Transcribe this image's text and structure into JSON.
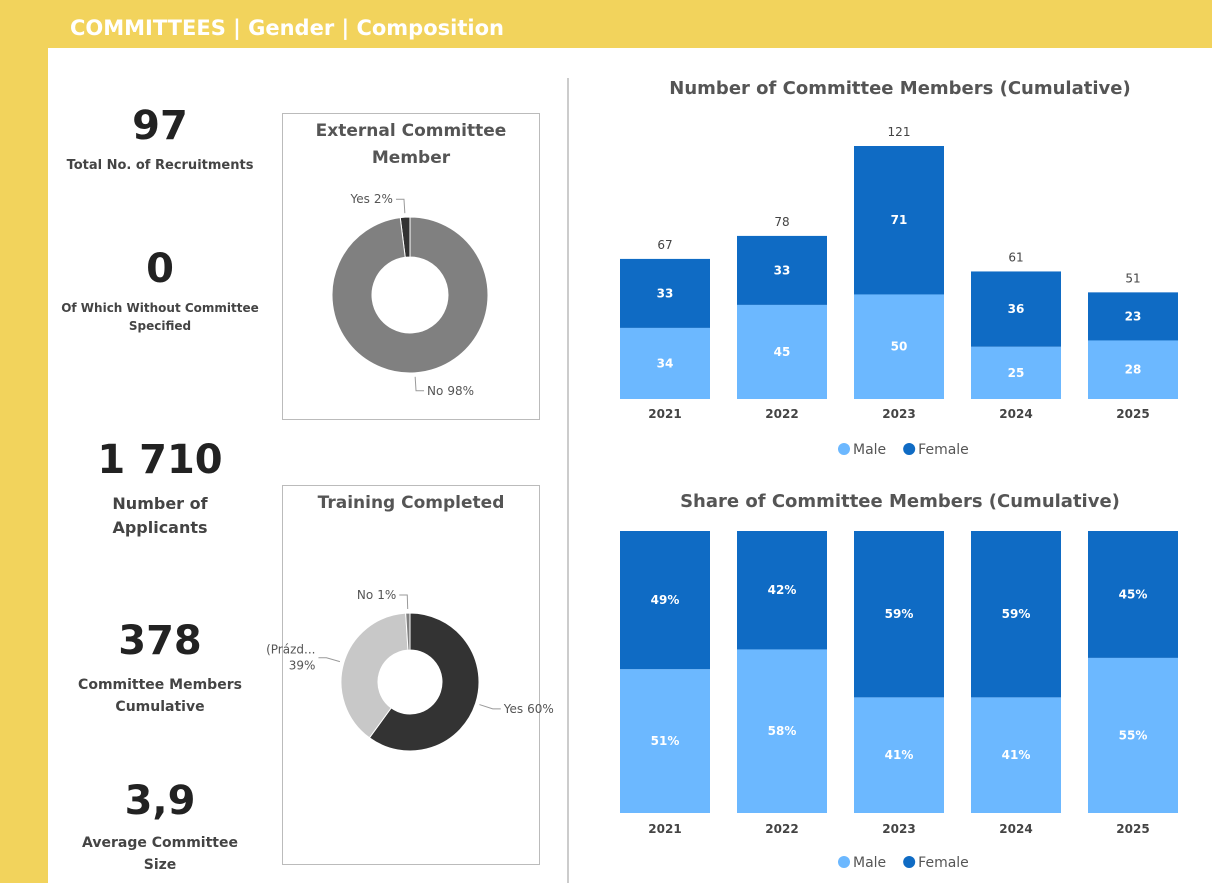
{
  "header": {
    "title": "COMMITTEES | Gender | Composition"
  },
  "kpis": [
    {
      "value": "97",
      "label": [
        "Total No. of Recruitments"
      ]
    },
    {
      "value": "0",
      "label": [
        "Of Which Without Committee",
        "Specified"
      ]
    },
    {
      "value": "1 710",
      "label": [
        "Number of",
        "Applicants"
      ]
    },
    {
      "value": "378",
      "label": [
        "Committee Members",
        "Cumulative"
      ]
    },
    {
      "value": "3,9",
      "label": [
        "Average Committee",
        "Size"
      ]
    }
  ],
  "chart_data": [
    {
      "type": "donut",
      "title": "External Committee Member",
      "categories": [
        "Yes",
        "No"
      ],
      "values": [
        2,
        98
      ],
      "value_labels": [
        "2%",
        "98%"
      ],
      "colors": [
        "#333333",
        "#808080"
      ],
      "direction": "counterclockwise"
    },
    {
      "type": "donut",
      "title": "Training Completed",
      "categories": [
        "Yes",
        "(Prázd...",
        "No"
      ],
      "values": [
        60,
        39,
        1
      ],
      "value_labels": [
        "60%",
        "39%",
        "1%"
      ],
      "colors": [
        "#333333",
        "#c8c8c8",
        "#808080"
      ],
      "direction": "clockwise"
    },
    {
      "type": "bar",
      "stacked": true,
      "title": "Number of Committee Members (Cumulative)",
      "categories": [
        "2021",
        "2022",
        "2023",
        "2024",
        "2025"
      ],
      "series": [
        {
          "name": "Male",
          "color": "#6cb8ff",
          "values": [
            34,
            45,
            50,
            25,
            28
          ]
        },
        {
          "name": "Female",
          "color": "#0f6bc4",
          "values": [
            33,
            33,
            71,
            36,
            23
          ]
        }
      ],
      "totals": [
        67,
        78,
        121,
        61,
        51
      ],
      "legend": "bottom"
    },
    {
      "type": "bar",
      "stacked": true,
      "title": "Share of Committee Members (Cumulative)",
      "categories": [
        "2021",
        "2022",
        "2023",
        "2024",
        "2025"
      ],
      "series": [
        {
          "name": "Male",
          "color": "#6cb8ff",
          "values": [
            51,
            58,
            41,
            41,
            55
          ],
          "value_labels": [
            "51%",
            "58%",
            "41%",
            "41%",
            "55%"
          ]
        },
        {
          "name": "Female",
          "color": "#0f6bc4",
          "values": [
            49,
            42,
            59,
            59,
            45
          ],
          "value_labels": [
            "49%",
            "42%",
            "59%",
            "59%",
            "45%"
          ]
        }
      ],
      "legend": "bottom"
    }
  ]
}
